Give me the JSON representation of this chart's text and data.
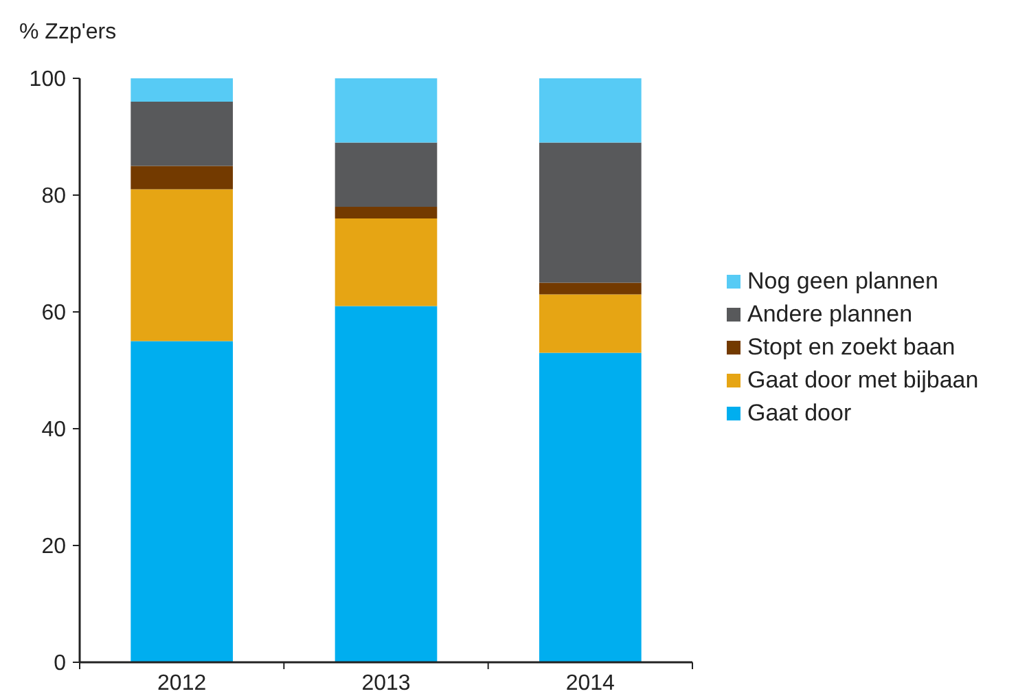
{
  "chart_data": {
    "type": "bar",
    "stacked": true,
    "ylabel": "% Zzp'ers",
    "categories": [
      "2012",
      "2013",
      "2014"
    ],
    "ylim": [
      0,
      100
    ],
    "yticks": [
      0,
      20,
      40,
      60,
      80,
      100
    ],
    "legend": "right",
    "series": [
      {
        "name": "Gaat door",
        "color": "#00aeef",
        "values": [
          55,
          61,
          53
        ]
      },
      {
        "name": "Gaat door met bijbaan",
        "color": "#e6a514",
        "values": [
          26,
          15,
          10
        ]
      },
      {
        "name": "Stopt en zoekt baan",
        "color": "#733a00",
        "values": [
          4,
          2,
          2
        ]
      },
      {
        "name": "Andere plannen",
        "color": "#58595b",
        "values": [
          11,
          11,
          24
        ]
      },
      {
        "name": "Nog geen plannen",
        "color": "#57cbf5",
        "values": [
          4,
          11,
          11
        ]
      }
    ]
  }
}
